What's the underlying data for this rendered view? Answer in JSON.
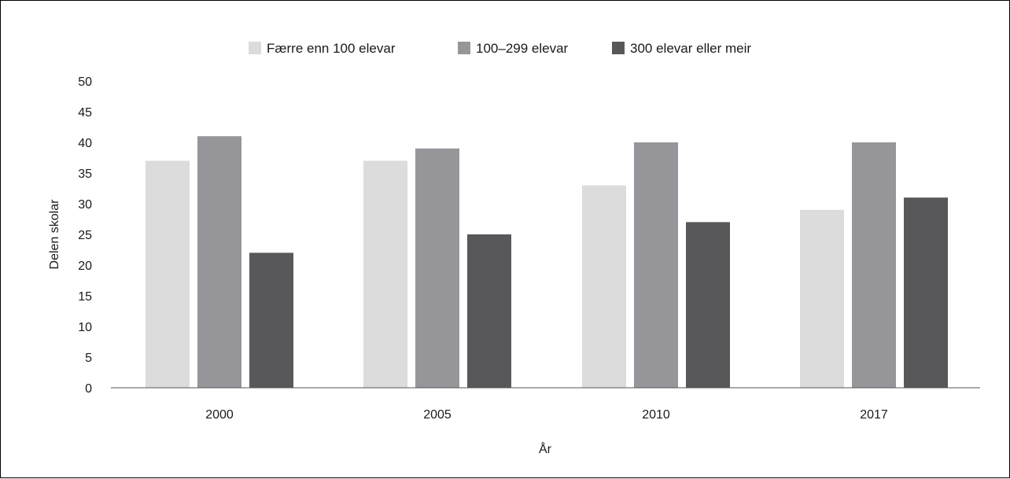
{
  "chart_data": {
    "type": "bar",
    "categories": [
      "2000",
      "2005",
      "2010",
      "2017"
    ],
    "series": [
      {
        "name": "Færre enn 100 elevar",
        "values": [
          37,
          37,
          33,
          29
        ],
        "color": "#dcdcdd"
      },
      {
        "name": "100–299 elevar",
        "values": [
          41,
          39,
          40,
          40
        ],
        "color": "#96969a"
      },
      {
        "name": "300 elevar eller meir",
        "values": [
          22,
          25,
          27,
          31
        ],
        "color": "#58585b"
      }
    ],
    "ylim": [
      0,
      50
    ],
    "yticks": [
      "0",
      "5",
      "10",
      "15",
      "20",
      "25",
      "30",
      "35",
      "40",
      "45",
      "50"
    ],
    "xlabel": "År",
    "ylabel": "Delen skolar",
    "grid": false,
    "legend": "top-center"
  }
}
